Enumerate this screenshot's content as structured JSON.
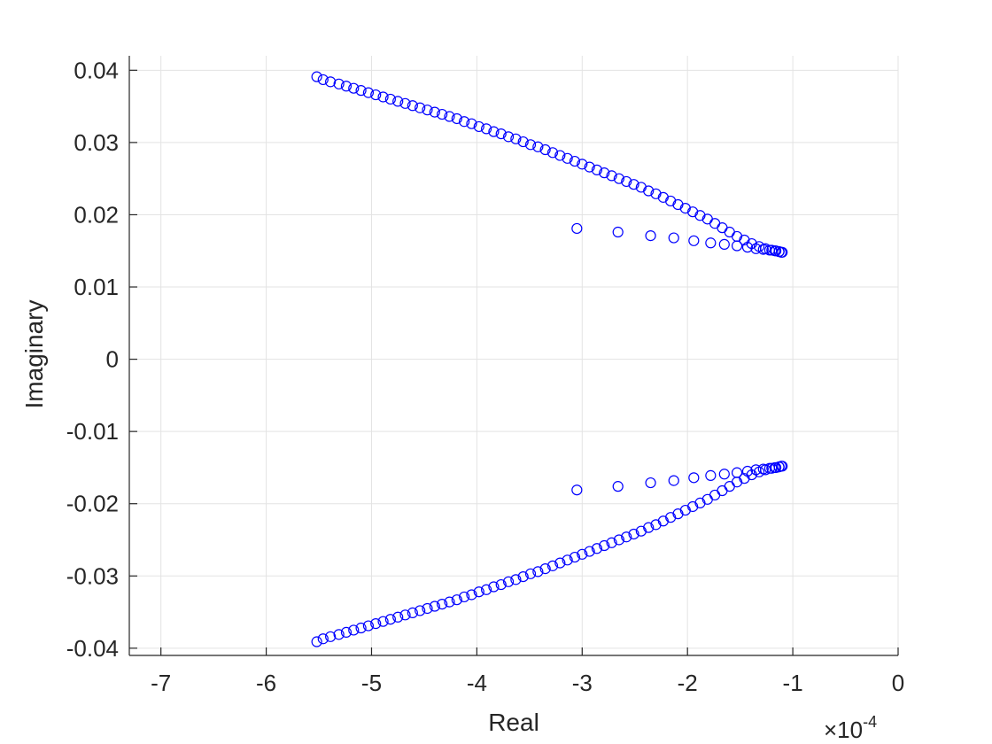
{
  "chart_data": {
    "type": "scatter",
    "xlabel": "Real",
    "ylabel": "Imaginary",
    "x_multiplier": {
      "base": "×10",
      "exponent": "-4"
    },
    "xlim": [
      -7.3,
      0
    ],
    "ylim": [
      -0.041,
      0.042
    ],
    "grid": true,
    "x_ticks": [
      -7,
      -6,
      -5,
      -4,
      -3,
      -2,
      -1,
      0
    ],
    "x_tick_labels": [
      "-7",
      "-6",
      "-5",
      "-4",
      "-3",
      "-2",
      "-1",
      "0"
    ],
    "y_ticks": [
      -0.04,
      -0.03,
      -0.02,
      -0.01,
      0,
      0.01,
      0.02,
      0.03,
      0.04
    ],
    "y_tick_labels": [
      "-0.04",
      "-0.03",
      "-0.02",
      "-0.01",
      "0",
      "0.01",
      "0.02",
      "0.03",
      "0.04"
    ],
    "marker": "circle",
    "marker_color": "#0000ff",
    "series": [
      {
        "x": [
          -5.52,
          -5.46,
          -5.39,
          -5.31,
          -5.24,
          -5.17,
          -5.1,
          -5.03,
          -4.96,
          -4.89,
          -4.82,
          -4.75,
          -4.68,
          -4.61,
          -4.54,
          -4.47,
          -4.4,
          -4.33,
          -4.26,
          -4.19,
          -4.12,
          -4.05,
          -3.98,
          -3.91,
          -3.84,
          -3.77,
          -3.7,
          -3.63,
          -3.56,
          -3.49,
          -3.42,
          -3.35,
          -3.28,
          -3.21,
          -3.14,
          -3.07,
          -3.0,
          -2.93,
          -2.86,
          -2.79,
          -2.72,
          -2.65,
          -2.58,
          -2.51,
          -2.44,
          -2.37,
          -2.3,
          -2.23,
          -2.16,
          -2.09,
          -2.02,
          -1.95,
          -1.88,
          -1.81,
          -1.74,
          -1.67,
          -1.6,
          -1.53,
          -1.46,
          -1.39,
          -1.32,
          -1.26,
          -1.2,
          -1.16,
          -1.13,
          -1.11,
          -1.1
        ],
        "y": [
          0.0391,
          0.0387,
          0.0384,
          0.0381,
          0.0378,
          0.0375,
          0.0372,
          0.0369,
          0.0366,
          0.0363,
          0.036,
          0.0357,
          0.0354,
          0.0351,
          0.0348,
          0.0345,
          0.0342,
          0.0339,
          0.0336,
          0.0333,
          0.0329,
          0.0326,
          0.0322,
          0.0319,
          0.0315,
          0.0312,
          0.0308,
          0.0305,
          0.0301,
          0.0297,
          0.0294,
          0.029,
          0.0286,
          0.0282,
          0.0278,
          0.0274,
          0.027,
          0.0266,
          0.0262,
          0.0258,
          0.0254,
          0.025,
          0.0246,
          0.0242,
          0.0238,
          0.0233,
          0.0229,
          0.0224,
          0.0219,
          0.0214,
          0.0209,
          0.0204,
          0.0199,
          0.0194,
          0.0188,
          0.0182,
          0.0176,
          0.017,
          0.0165,
          0.016,
          0.0156,
          0.0153,
          0.0151,
          0.015,
          0.0149,
          0.0148,
          0.0148
        ]
      },
      {
        "x": [
          -3.05,
          -2.66,
          -2.35,
          -2.13,
          -1.94,
          -1.78,
          -1.65,
          -1.53,
          -1.43,
          -1.35,
          -1.28,
          -1.22,
          -1.17,
          -1.13
        ],
        "y": [
          0.0181,
          0.0176,
          0.0171,
          0.0168,
          0.0164,
          0.0161,
          0.0159,
          0.0157,
          0.0155,
          0.0153,
          0.0152,
          0.0151,
          0.015,
          0.0149
        ]
      },
      {
        "x": [
          -5.52,
          -5.46,
          -5.39,
          -5.31,
          -5.24,
          -5.17,
          -5.1,
          -5.03,
          -4.96,
          -4.89,
          -4.82,
          -4.75,
          -4.68,
          -4.61,
          -4.54,
          -4.47,
          -4.4,
          -4.33,
          -4.26,
          -4.19,
          -4.12,
          -4.05,
          -3.98,
          -3.91,
          -3.84,
          -3.77,
          -3.7,
          -3.63,
          -3.56,
          -3.49,
          -3.42,
          -3.35,
          -3.28,
          -3.21,
          -3.14,
          -3.07,
          -3.0,
          -2.93,
          -2.86,
          -2.79,
          -2.72,
          -2.65,
          -2.58,
          -2.51,
          -2.44,
          -2.37,
          -2.3,
          -2.23,
          -2.16,
          -2.09,
          -2.02,
          -1.95,
          -1.88,
          -1.81,
          -1.74,
          -1.67,
          -1.6,
          -1.53,
          -1.46,
          -1.39,
          -1.32,
          -1.26,
          -1.2,
          -1.16,
          -1.13,
          -1.11,
          -1.1
        ],
        "y": [
          -0.0391,
          -0.0387,
          -0.0384,
          -0.0381,
          -0.0378,
          -0.0375,
          -0.0372,
          -0.0369,
          -0.0366,
          -0.0363,
          -0.036,
          -0.0357,
          -0.0354,
          -0.0351,
          -0.0348,
          -0.0345,
          -0.0342,
          -0.0339,
          -0.0336,
          -0.0333,
          -0.0329,
          -0.0326,
          -0.0322,
          -0.0319,
          -0.0315,
          -0.0312,
          -0.0308,
          -0.0305,
          -0.0301,
          -0.0297,
          -0.0294,
          -0.029,
          -0.0286,
          -0.0282,
          -0.0278,
          -0.0274,
          -0.027,
          -0.0266,
          -0.0262,
          -0.0258,
          -0.0254,
          -0.025,
          -0.0246,
          -0.0242,
          -0.0238,
          -0.0233,
          -0.0229,
          -0.0224,
          -0.0219,
          -0.0214,
          -0.0209,
          -0.0204,
          -0.0199,
          -0.0194,
          -0.0188,
          -0.0182,
          -0.0176,
          -0.017,
          -0.0165,
          -0.016,
          -0.0156,
          -0.0153,
          -0.0151,
          -0.015,
          -0.0149,
          -0.0148,
          -0.0148
        ]
      },
      {
        "x": [
          -3.05,
          -2.66,
          -2.35,
          -2.13,
          -1.94,
          -1.78,
          -1.65,
          -1.53,
          -1.43,
          -1.35,
          -1.28,
          -1.22,
          -1.17,
          -1.13
        ],
        "y": [
          -0.0181,
          -0.0176,
          -0.0171,
          -0.0168,
          -0.0164,
          -0.0161,
          -0.0159,
          -0.0157,
          -0.0155,
          -0.0153,
          -0.0152,
          -0.0151,
          -0.015,
          -0.0149
        ]
      }
    ]
  }
}
